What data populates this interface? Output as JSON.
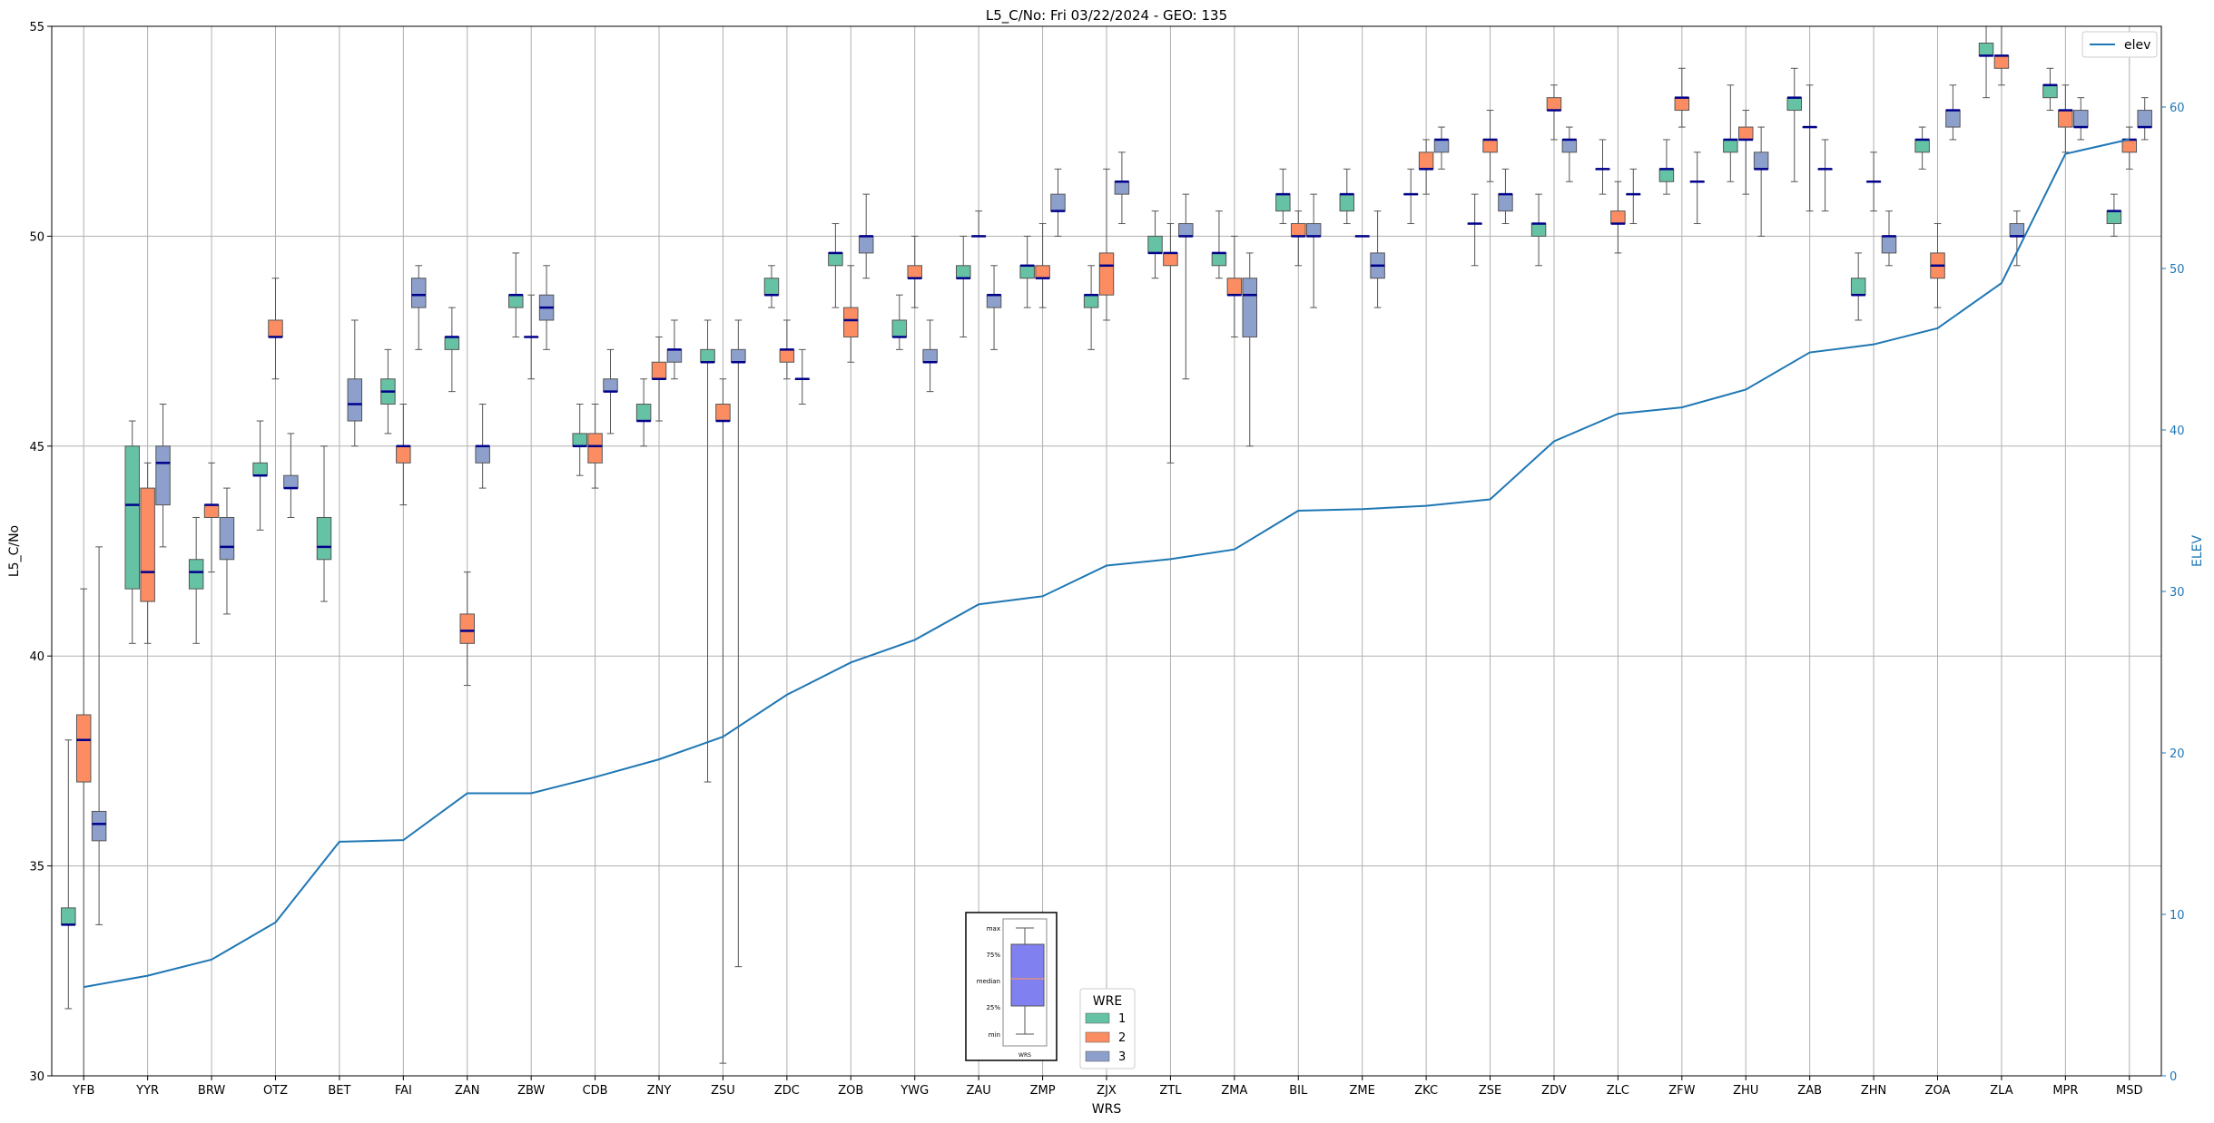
{
  "chart_data": {
    "type": "box",
    "title": "L5_C/No: Fri 03/22/2024 - GEO: 135",
    "xlabel": "WRS",
    "ylabel": "L5_C/No",
    "y2label": "ELEV",
    "ylim": [
      30,
      55
    ],
    "y2lim": [
      0,
      65
    ],
    "yticks": [
      30,
      35,
      40,
      45,
      50,
      55
    ],
    "y2ticks": [
      0,
      10,
      20,
      30,
      40,
      50,
      60
    ],
    "grid": true,
    "categories": [
      "YFB",
      "YYR",
      "BRW",
      "OTZ",
      "BET",
      "FAI",
      "ZAN",
      "ZBW",
      "CDB",
      "ZNY",
      "ZSU",
      "ZDC",
      "ZOB",
      "YWG",
      "ZAU",
      "ZMP",
      "ZJX",
      "ZTL",
      "ZMA",
      "BIL",
      "ZME",
      "ZKC",
      "ZSE",
      "ZDV",
      "ZLC",
      "ZFW",
      "ZHU",
      "ZAB",
      "ZHN",
      "ZOA",
      "ZLA",
      "MPR",
      "MSD"
    ],
    "legend_title": "WRE",
    "series": [
      {
        "name": "1",
        "color": "#66c2a5",
        "boxes": [
          {
            "min": 31.6,
            "q1": 33.6,
            "median": 33.6,
            "q3": 34.0,
            "max": 38.0
          },
          {
            "min": 40.3,
            "q1": 41.6,
            "median": 43.6,
            "q3": 45.0,
            "max": 45.6
          },
          {
            "min": 40.3,
            "q1": 41.6,
            "median": 42.0,
            "q3": 42.3,
            "max": 43.3
          },
          {
            "min": 43.0,
            "q1": 44.3,
            "median": 44.3,
            "q3": 44.6,
            "max": 45.6
          },
          {
            "min": 41.3,
            "q1": 42.3,
            "median": 42.6,
            "q3": 43.3,
            "max": 45.0
          },
          {
            "min": 45.3,
            "q1": 46.0,
            "median": 46.3,
            "q3": 46.6,
            "max": 47.3
          },
          {
            "min": 46.3,
            "q1": 47.3,
            "median": 47.6,
            "q3": 47.6,
            "max": 48.3
          },
          {
            "min": 47.6,
            "q1": 48.3,
            "median": 48.6,
            "q3": 48.6,
            "max": 49.6
          },
          {
            "min": 44.3,
            "q1": 45.0,
            "median": 45.0,
            "q3": 45.3,
            "max": 46.0
          },
          {
            "min": 45.0,
            "q1": 45.6,
            "median": 45.6,
            "q3": 46.0,
            "max": 46.6
          },
          {
            "min": 37.0,
            "q1": 47.0,
            "median": 47.0,
            "q3": 47.3,
            "max": 48.0
          },
          {
            "min": 48.3,
            "q1": 48.6,
            "median": 48.6,
            "q3": 49.0,
            "max": 49.3
          },
          {
            "min": 48.3,
            "q1": 49.3,
            "median": 49.6,
            "q3": 49.6,
            "max": 50.3
          },
          {
            "min": 47.3,
            "q1": 47.6,
            "median": 47.6,
            "q3": 48.0,
            "max": 48.6
          },
          {
            "min": 47.6,
            "q1": 49.0,
            "median": 49.0,
            "q3": 49.3,
            "max": 50.0
          },
          {
            "min": 48.3,
            "q1": 49.0,
            "median": 49.3,
            "q3": 49.3,
            "max": 50.0
          },
          {
            "min": 47.3,
            "q1": 48.3,
            "median": 48.6,
            "q3": 48.6,
            "max": 49.3
          },
          {
            "min": 49.0,
            "q1": 49.6,
            "median": 49.6,
            "q3": 50.0,
            "max": 50.6
          },
          {
            "min": 49.0,
            "q1": 49.3,
            "median": 49.6,
            "q3": 49.6,
            "max": 50.6
          },
          {
            "min": 50.3,
            "q1": 50.6,
            "median": 51.0,
            "q3": 51.0,
            "max": 51.6
          },
          {
            "min": 50.3,
            "q1": 50.6,
            "median": 51.0,
            "q3": 51.0,
            "max": 51.6
          },
          {
            "min": 50.3,
            "q1": 51.0,
            "median": 51.0,
            "q3": 51.0,
            "max": 51.6
          },
          {
            "min": 49.3,
            "q1": 50.3,
            "median": 50.3,
            "q3": 50.3,
            "max": 51.0
          },
          {
            "min": 49.3,
            "q1": 50.0,
            "median": 50.3,
            "q3": 50.3,
            "max": 51.0
          },
          {
            "min": 51.0,
            "q1": 51.6,
            "median": 51.6,
            "q3": 51.6,
            "max": 52.3
          },
          {
            "min": 51.0,
            "q1": 51.3,
            "median": 51.6,
            "q3": 51.6,
            "max": 52.3
          },
          {
            "min": 51.3,
            "q1": 52.0,
            "median": 52.3,
            "q3": 52.3,
            "max": 53.6
          },
          {
            "min": 51.3,
            "q1": 53.0,
            "median": 53.3,
            "q3": 53.3,
            "max": 54.0
          },
          {
            "min": 48.0,
            "q1": 48.6,
            "median": 48.6,
            "q3": 49.0,
            "max": 49.6
          },
          {
            "min": 51.6,
            "q1": 52.0,
            "median": 52.3,
            "q3": 52.3,
            "max": 52.6
          },
          {
            "min": 53.3,
            "q1": 54.3,
            "median": 54.3,
            "q3": 54.6,
            "max": 55.0
          },
          {
            "min": 53.0,
            "q1": 53.3,
            "median": 53.6,
            "q3": 53.6,
            "max": 54.0
          },
          {
            "min": 50.0,
            "q1": 50.3,
            "median": 50.6,
            "q3": 50.6,
            "max": 51.0
          }
        ]
      },
      {
        "name": "2",
        "color": "#fc8d62",
        "boxes": [
          {
            "min": 30.0,
            "q1": 37.0,
            "median": 38.0,
            "q3": 38.6,
            "max": 41.6
          },
          {
            "min": 40.3,
            "q1": 41.3,
            "median": 42.0,
            "q3": 44.0,
            "max": 44.6
          },
          {
            "min": 42.0,
            "q1": 43.3,
            "median": 43.6,
            "q3": 43.6,
            "max": 44.6
          },
          {
            "min": 46.6,
            "q1": 47.6,
            "median": 47.6,
            "q3": 48.0,
            "max": 49.0
          },
          null,
          {
            "min": 43.6,
            "q1": 44.6,
            "median": 45.0,
            "q3": 45.0,
            "max": 46.0
          },
          {
            "min": 39.3,
            "q1": 40.3,
            "median": 40.6,
            "q3": 41.0,
            "max": 42.0
          },
          {
            "min": 46.6,
            "q1": 47.6,
            "median": 47.6,
            "q3": 47.6,
            "max": 48.6
          },
          {
            "min": 44.0,
            "q1": 44.6,
            "median": 45.0,
            "q3": 45.3,
            "max": 46.0
          },
          {
            "min": 45.6,
            "q1": 46.6,
            "median": 46.6,
            "q3": 47.0,
            "max": 47.6
          },
          {
            "min": 30.3,
            "q1": 45.6,
            "median": 45.6,
            "q3": 46.0,
            "max": 46.6
          },
          {
            "min": 46.6,
            "q1": 47.0,
            "median": 47.3,
            "q3": 47.3,
            "max": 48.0
          },
          {
            "min": 47.0,
            "q1": 47.6,
            "median": 48.0,
            "q3": 48.3,
            "max": 49.3
          },
          {
            "min": 48.3,
            "q1": 49.0,
            "median": 49.0,
            "q3": 49.3,
            "max": 50.0
          },
          {
            "min": 50.0,
            "q1": 50.0,
            "median": 50.0,
            "q3": 50.0,
            "max": 50.6
          },
          {
            "min": 48.3,
            "q1": 49.0,
            "median": 49.0,
            "q3": 49.3,
            "max": 50.3
          },
          {
            "min": 48.0,
            "q1": 48.6,
            "median": 49.3,
            "q3": 49.6,
            "max": 51.6
          },
          {
            "min": 44.6,
            "q1": 49.3,
            "median": 49.6,
            "q3": 49.6,
            "max": 50.3
          },
          {
            "min": 47.6,
            "q1": 48.6,
            "median": 48.6,
            "q3": 49.0,
            "max": 50.0
          },
          {
            "min": 49.3,
            "q1": 50.0,
            "median": 50.0,
            "q3": 50.3,
            "max": 50.6
          },
          {
            "min": 50.0,
            "q1": 50.0,
            "median": 50.0,
            "q3": 50.0,
            "max": 50.0
          },
          {
            "min": 51.0,
            "q1": 51.6,
            "median": 51.6,
            "q3": 52.0,
            "max": 52.3
          },
          {
            "min": 51.3,
            "q1": 52.0,
            "median": 52.3,
            "q3": 52.3,
            "max": 53.0
          },
          {
            "min": 52.3,
            "q1": 53.0,
            "median": 53.0,
            "q3": 53.3,
            "max": 53.6
          },
          {
            "min": 49.6,
            "q1": 50.3,
            "median": 50.3,
            "q3": 50.6,
            "max": 51.3
          },
          {
            "min": 52.6,
            "q1": 53.0,
            "median": 53.3,
            "q3": 53.3,
            "max": 54.0
          },
          {
            "min": 51.0,
            "q1": 52.3,
            "median": 52.3,
            "q3": 52.6,
            "max": 53.0
          },
          {
            "min": 50.6,
            "q1": 52.6,
            "median": 52.6,
            "q3": 52.6,
            "max": 53.6
          },
          {
            "min": 50.6,
            "q1": 51.3,
            "median": 51.3,
            "q3": 51.3,
            "max": 52.0
          },
          {
            "min": 48.3,
            "q1": 49.0,
            "median": 49.3,
            "q3": 49.6,
            "max": 50.3
          },
          {
            "min": 53.6,
            "q1": 54.0,
            "median": 54.3,
            "q3": 54.3,
            "max": 55.0
          },
          {
            "min": 52.0,
            "q1": 52.6,
            "median": 53.0,
            "q3": 53.0,
            "max": 53.6
          },
          {
            "min": 51.6,
            "q1": 52.0,
            "median": 52.3,
            "q3": 52.3,
            "max": 52.6
          }
        ]
      },
      {
        "name": "3",
        "color": "#8da0cb",
        "boxes": [
          {
            "min": 33.6,
            "q1": 35.6,
            "median": 36.0,
            "q3": 36.3,
            "max": 42.6
          },
          {
            "min": 42.6,
            "q1": 43.6,
            "median": 44.6,
            "q3": 45.0,
            "max": 46.0
          },
          {
            "min": 41.0,
            "q1": 42.3,
            "median": 42.6,
            "q3": 43.3,
            "max": 44.0
          },
          {
            "min": 43.3,
            "q1": 44.0,
            "median": 44.0,
            "q3": 44.3,
            "max": 45.3
          },
          {
            "min": 45.0,
            "q1": 45.6,
            "median": 46.0,
            "q3": 46.6,
            "max": 48.0
          },
          {
            "min": 47.3,
            "q1": 48.3,
            "median": 48.6,
            "q3": 49.0,
            "max": 49.3
          },
          {
            "min": 44.0,
            "q1": 44.6,
            "median": 45.0,
            "q3": 45.0,
            "max": 46.0
          },
          {
            "min": 47.3,
            "q1": 48.0,
            "median": 48.3,
            "q3": 48.6,
            "max": 49.3
          },
          {
            "min": 45.3,
            "q1": 46.3,
            "median": 46.3,
            "q3": 46.6,
            "max": 47.3
          },
          {
            "min": 46.6,
            "q1": 47.0,
            "median": 47.3,
            "q3": 47.3,
            "max": 48.0
          },
          {
            "min": 32.6,
            "q1": 47.0,
            "median": 47.0,
            "q3": 47.3,
            "max": 48.0
          },
          {
            "min": 46.0,
            "q1": 46.6,
            "median": 46.6,
            "q3": 46.6,
            "max": 47.3
          },
          {
            "min": 49.0,
            "q1": 49.6,
            "median": 50.0,
            "q3": 50.0,
            "max": 51.0
          },
          {
            "min": 46.3,
            "q1": 47.0,
            "median": 47.0,
            "q3": 47.3,
            "max": 48.0
          },
          {
            "min": 47.3,
            "q1": 48.3,
            "median": 48.6,
            "q3": 48.6,
            "max": 49.3
          },
          {
            "min": 50.0,
            "q1": 50.6,
            "median": 50.6,
            "q3": 51.0,
            "max": 51.6
          },
          {
            "min": 50.3,
            "q1": 51.0,
            "median": 51.3,
            "q3": 51.3,
            "max": 52.0
          },
          {
            "min": 46.6,
            "q1": 50.0,
            "median": 50.0,
            "q3": 50.3,
            "max": 51.0
          },
          {
            "min": 45.0,
            "q1": 47.6,
            "median": 48.6,
            "q3": 49.0,
            "max": 49.6
          },
          {
            "min": 48.3,
            "q1": 50.0,
            "median": 50.0,
            "q3": 50.3,
            "max": 51.0
          },
          {
            "min": 48.3,
            "q1": 49.0,
            "median": 49.3,
            "q3": 49.6,
            "max": 50.6
          },
          {
            "min": 51.6,
            "q1": 52.0,
            "median": 52.3,
            "q3": 52.3,
            "max": 52.6
          },
          {
            "min": 50.3,
            "q1": 50.6,
            "median": 51.0,
            "q3": 51.0,
            "max": 51.6
          },
          {
            "min": 51.3,
            "q1": 52.0,
            "median": 52.3,
            "q3": 52.3,
            "max": 52.6
          },
          {
            "min": 50.3,
            "q1": 51.0,
            "median": 51.0,
            "q3": 51.0,
            "max": 51.6
          },
          {
            "min": 50.3,
            "q1": 51.3,
            "median": 51.3,
            "q3": 51.3,
            "max": 52.0
          },
          {
            "min": 50.0,
            "q1": 51.6,
            "median": 51.6,
            "q3": 52.0,
            "max": 52.6
          },
          {
            "min": 50.6,
            "q1": 51.6,
            "median": 51.6,
            "q3": 51.6,
            "max": 52.3
          },
          {
            "min": 49.3,
            "q1": 49.6,
            "median": 50.0,
            "q3": 50.0,
            "max": 50.6
          },
          {
            "min": 52.3,
            "q1": 52.6,
            "median": 53.0,
            "q3": 53.0,
            "max": 53.6
          },
          {
            "min": 49.3,
            "q1": 50.0,
            "median": 50.0,
            "q3": 50.3,
            "max": 50.6
          },
          {
            "min": 52.3,
            "q1": 52.6,
            "median": 52.6,
            "q3": 53.0,
            "max": 53.3
          },
          {
            "min": 52.3,
            "q1": 52.6,
            "median": 52.6,
            "q3": 53.0,
            "max": 53.3
          }
        ]
      }
    ],
    "line_series": {
      "name": "elev",
      "axis": "y2",
      "color": "#1f77b4",
      "values": [
        5.5,
        6.2,
        7.2,
        9.5,
        14.5,
        14.6,
        17.5,
        17.5,
        18.5,
        19.6,
        21.0,
        23.6,
        25.6,
        27.0,
        29.2,
        29.7,
        31.6,
        32.0,
        32.6,
        35.0,
        35.1,
        35.3,
        35.7,
        39.3,
        41.0,
        41.4,
        42.5,
        44.8,
        45.3,
        46.3,
        49.1,
        57.1,
        58.0
      ]
    },
    "median_line_color": "#00008b",
    "inset_labels": [
      "max",
      "75%",
      "median",
      "25%",
      "min"
    ],
    "inset_xlabel": "WRS",
    "inset_color": "#8080f0",
    "inset_median_color": "#e09080"
  }
}
